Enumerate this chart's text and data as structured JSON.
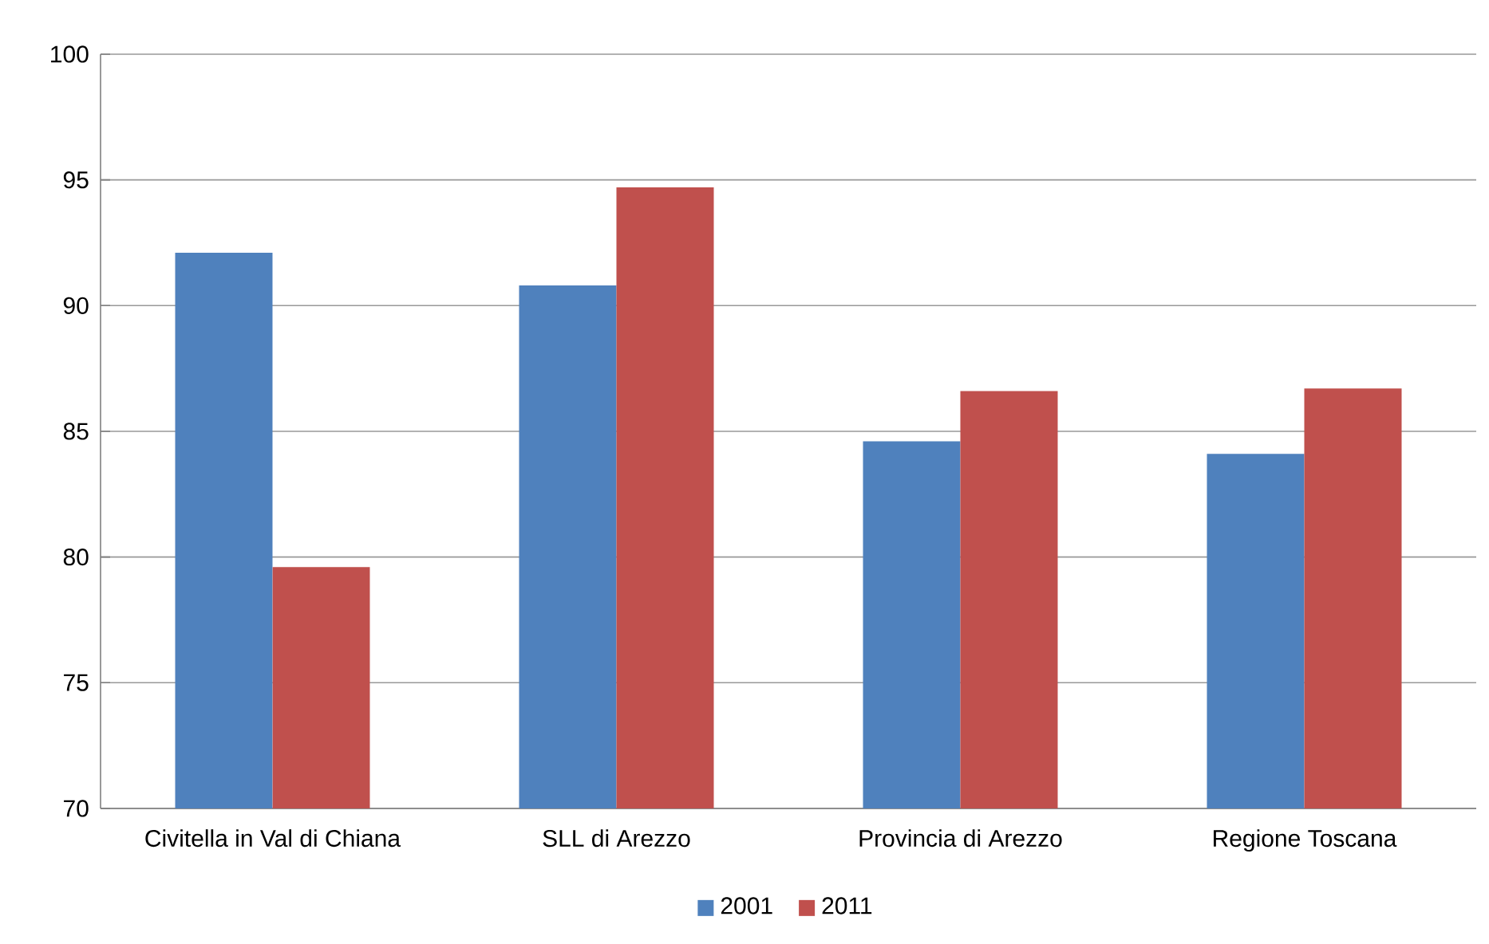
{
  "chart_data": {
    "type": "bar",
    "categories": [
      "Civitella in Val di Chiana",
      "SLL di Arezzo",
      "Provincia di Arezzo",
      "Regione Toscana"
    ],
    "series": [
      {
        "name": "2001",
        "color": "#4f81bd",
        "values": [
          92.1,
          90.8,
          84.6,
          84.1
        ]
      },
      {
        "name": "2011",
        "color": "#c0504d",
        "values": [
          79.6,
          94.7,
          86.6,
          86.7
        ]
      }
    ],
    "ylim": [
      70,
      100
    ],
    "yticks": [
      70,
      75,
      80,
      85,
      90,
      95,
      100
    ],
    "grid": "y",
    "legend": "bottom"
  }
}
